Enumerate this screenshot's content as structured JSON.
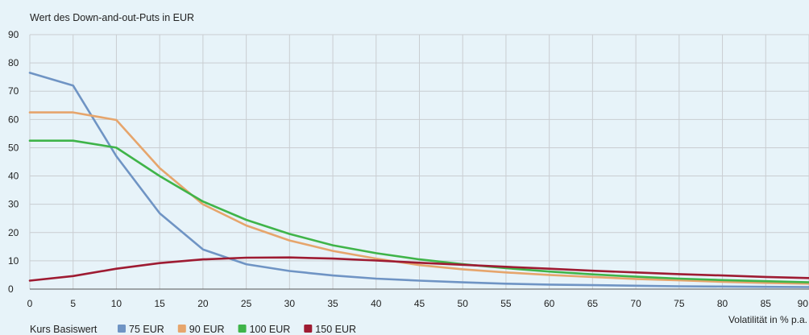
{
  "chart_data": {
    "type": "line",
    "title": "Wert des Down-and-out-Puts in EUR",
    "xlabel": "Volatilität in % p.a.",
    "ylabel": "",
    "xlim": [
      0,
      90
    ],
    "ylim": [
      0,
      90
    ],
    "x_ticks": [
      0,
      5,
      10,
      15,
      20,
      25,
      30,
      35,
      40,
      45,
      50,
      55,
      60,
      65,
      70,
      75,
      80,
      85,
      90
    ],
    "y_ticks": [
      0,
      10,
      20,
      30,
      40,
      50,
      60,
      70,
      80,
      90
    ],
    "grid": true,
    "legend_title": "Kurs Basiswert",
    "legend_position": "bottom-left",
    "x": [
      0,
      5,
      10,
      15,
      20,
      25,
      30,
      35,
      40,
      45,
      50,
      55,
      60,
      65,
      70,
      75,
      80,
      85,
      90
    ],
    "series": [
      {
        "name": "75 EUR",
        "color": "#6f94c4",
        "values": [
          76.5,
          72,
          47,
          26.8,
          14,
          8.8,
          6.4,
          4.8,
          3.7,
          3,
          2.4,
          1.9,
          1.6,
          1.4,
          1.2,
          1,
          0.9,
          0.8,
          0.7
        ]
      },
      {
        "name": "90 EUR",
        "color": "#e6a56c",
        "values": [
          62.5,
          62.5,
          59.8,
          42.8,
          30,
          22.5,
          17.2,
          13.5,
          10.8,
          8.5,
          7,
          5.9,
          5,
          4.3,
          3.6,
          3.1,
          2.6,
          2.2,
          1.9
        ]
      },
      {
        "name": "100 EUR",
        "color": "#3fb449",
        "values": [
          52.5,
          52.5,
          50,
          40,
          31,
          24.5,
          19.5,
          15.5,
          12.7,
          10.5,
          8.8,
          7.4,
          6.2,
          5.2,
          4.4,
          3.7,
          3.2,
          2.8,
          2.4
        ]
      },
      {
        "name": "150 EUR",
        "color": "#9e1b32",
        "values": [
          3,
          4.6,
          7.2,
          9.2,
          10.5,
          11.1,
          11.2,
          10.8,
          10.1,
          9.3,
          8.6,
          7.9,
          7.2,
          6.5,
          5.9,
          5.3,
          4.8,
          4.3,
          3.9
        ]
      }
    ]
  }
}
